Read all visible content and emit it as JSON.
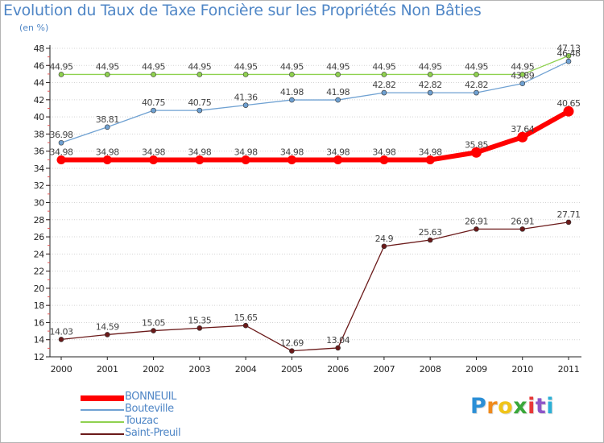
{
  "chart_data": {
    "type": "line",
    "title": "Evolution du Taux de Taxe Foncière sur les Propriétés Non Bâties",
    "ylabel": "(en %)",
    "ylim": [
      12,
      48
    ],
    "yticks": [
      12,
      14,
      16,
      18,
      20,
      22,
      24,
      26,
      28,
      30,
      32,
      34,
      36,
      38,
      40,
      42,
      44,
      46,
      48
    ],
    "categories": [
      "2000",
      "2001",
      "2002",
      "2003",
      "2004",
      "2005",
      "2006",
      "2007",
      "2008",
      "2009",
      "2010",
      "2011"
    ],
    "series": [
      {
        "name": "Saint-Preuil",
        "color": "#6b1a1a",
        "values": [
          14.03,
          14.59,
          15.05,
          15.35,
          15.65,
          12.69,
          13.04,
          24.9,
          25.63,
          26.91,
          26.91,
          27.71
        ],
        "labels": [
          "14.03",
          "14.59",
          "15.05",
          "15.35",
          "15.65",
          "12.69",
          "13.04",
          "24.9",
          "25.63",
          "26.91",
          "26.91",
          "27.71"
        ]
      },
      {
        "name": "Touzac",
        "color": "#8fd14f",
        "values": [
          44.95,
          44.95,
          44.95,
          44.95,
          44.95,
          44.95,
          44.95,
          44.95,
          44.95,
          44.95,
          44.95,
          47.13
        ],
        "labels": [
          "44.95",
          "44.95",
          "44.95",
          "44.95",
          "44.95",
          "44.95",
          "44.95",
          "44.95",
          "44.95",
          "44.95",
          "44.95",
          "47.13"
        ]
      },
      {
        "name": "Bouteville",
        "color": "#6fa1d2",
        "values": [
          36.98,
          38.81,
          40.75,
          40.75,
          41.36,
          41.98,
          41.98,
          42.82,
          42.82,
          42.82,
          43.89,
          46.48
        ],
        "labels": [
          "36.98",
          "38.81",
          "40.75",
          "40.75",
          "41.36",
          "41.98",
          "41.98",
          "42.82",
          "42.82",
          "42.82",
          "43.89",
          "46.48"
        ]
      },
      {
        "name": "BONNEUIL",
        "color": "#ff0000",
        "values": [
          34.98,
          34.98,
          34.98,
          34.98,
          34.98,
          34.98,
          34.98,
          34.98,
          34.98,
          35.85,
          37.64,
          40.65
        ],
        "labels": [
          "34.98",
          "34.98",
          "34.98",
          "34.98",
          "34.98",
          "34.98",
          "34.98",
          "34.98",
          "34.98",
          "35.85",
          "37.64",
          "40.65"
        ]
      }
    ]
  },
  "legend": [
    {
      "name": "BONNEUIL",
      "color": "#ff0000"
    },
    {
      "name": "Bouteville",
      "color": "#6fa1d2"
    },
    {
      "name": "Touzac",
      "color": "#8fd14f"
    },
    {
      "name": "Saint-Preuil",
      "color": "#6b1a1a"
    }
  ],
  "logo": {
    "letters": [
      "P",
      "r",
      "o",
      "x",
      "i",
      "t",
      "i"
    ],
    "colors": [
      "#2b8fd6",
      "#f08a1c",
      "#f0c419",
      "#3aa83a",
      "#e83838",
      "#8e56c8",
      "#2bb0d6"
    ]
  }
}
